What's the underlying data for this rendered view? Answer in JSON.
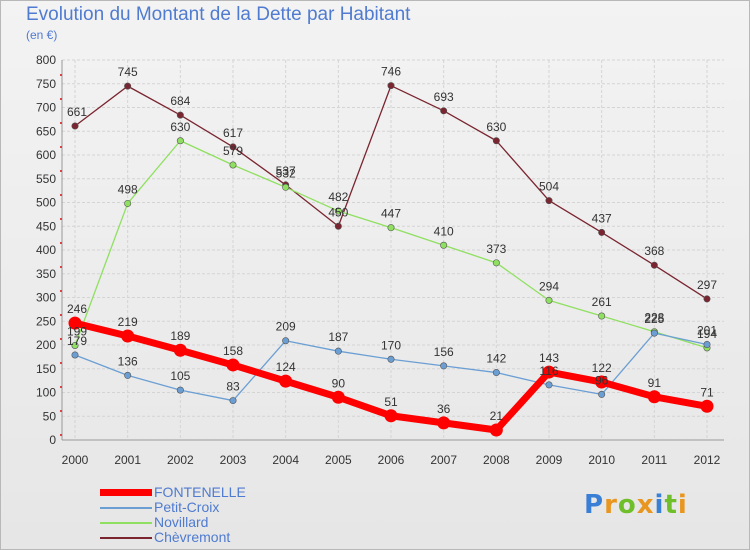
{
  "title": "Evolution du Montant de la Dette par Habitant",
  "subtitle": "(en €)",
  "logo": {
    "text": "Proxiti",
    "colors": [
      "#3a7fd6",
      "#e8961f",
      "#6fbf2a",
      "#e8961f",
      "#3a7fd6",
      "#6fbf2a",
      "#e8961f"
    ]
  },
  "chart_data": {
    "type": "line",
    "title": "Evolution du Montant de la Dette par Habitant",
    "ylabel": "(en €)",
    "xlabel": "",
    "x": [
      "2000",
      "2001",
      "2002",
      "2003",
      "2004",
      "2005",
      "2006",
      "2007",
      "2008",
      "2009",
      "2010",
      "2011",
      "2012"
    ],
    "ylim": [
      0,
      800
    ],
    "yticks": [
      0,
      50,
      100,
      150,
      200,
      250,
      300,
      350,
      400,
      450,
      500,
      550,
      600,
      650,
      700,
      750,
      800
    ],
    "grid": true,
    "legend_position": "bottom-left",
    "series": [
      {
        "name": "FONTENELLE",
        "color": "#ff0000",
        "values": [
          246,
          219,
          189,
          158,
          124,
          90,
          51,
          36,
          21,
          143,
          122,
          91,
          71
        ]
      },
      {
        "name": "Petit-Croix",
        "color": "#6b9fd4",
        "values": [
          179,
          136,
          105,
          83,
          209,
          187,
          170,
          156,
          142,
          116,
          96,
          225,
          201
        ]
      },
      {
        "name": "Novillard",
        "color": "#8fe060",
        "values": [
          199,
          498,
          630,
          579,
          532,
          482,
          447,
          410,
          373,
          294,
          261,
          228,
          194
        ]
      },
      {
        "name": "Chèvremont",
        "color": "#7a2530",
        "values": [
          661,
          745,
          684,
          617,
          537,
          450,
          746,
          693,
          630,
          504,
          437,
          368,
          297
        ]
      }
    ]
  }
}
